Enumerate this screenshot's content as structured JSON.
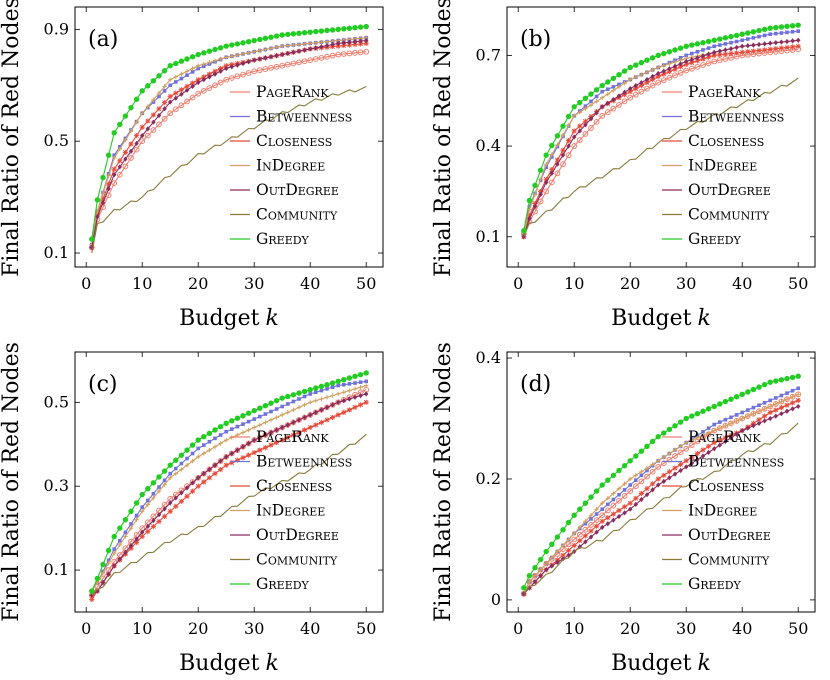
{
  "x_label_text": "Budget",
  "x_label_var": "k",
  "y_label": "Final Ratio of Red Nodes",
  "legend": [
    {
      "key": "pagerank",
      "label": "PageRank",
      "color": "#f08070",
      "marker": "hcircle"
    },
    {
      "key": "betweenness",
      "label": "Betweenness",
      "color": "#6f73d9",
      "marker": "square"
    },
    {
      "key": "closeness",
      "label": "Closeness",
      "color": "#e84a3a",
      "marker": "star"
    },
    {
      "key": "indegree",
      "label": "InDegree",
      "color": "#d2a060",
      "marker": "plus"
    },
    {
      "key": "outdegree",
      "label": "OutDegree",
      "color": "#8a2d5d",
      "marker": "diamond"
    },
    {
      "key": "community",
      "label": "Community",
      "color": "#8b7a3a",
      "marker": "none"
    },
    {
      "key": "greedy",
      "label": "Greedy",
      "color": "#22cc22",
      "marker": "dot"
    }
  ],
  "chart_data": [
    {
      "type": "line",
      "panel_label": "(a)",
      "xlim": [
        -2,
        53
      ],
      "ylim": [
        0.05,
        0.98
      ],
      "xticks": [
        0,
        10,
        20,
        30,
        40,
        50
      ],
      "yticks": [
        0.1,
        0.5,
        0.9
      ],
      "x": [
        1,
        2,
        5,
        10,
        15,
        20,
        25,
        30,
        35,
        40,
        45,
        50
      ],
      "series": [
        {
          "name": "PageRank",
          "values": [
            0.12,
            0.22,
            0.35,
            0.5,
            0.6,
            0.67,
            0.72,
            0.75,
            0.77,
            0.79,
            0.81,
            0.82
          ]
        },
        {
          "name": "Betweenness",
          "values": [
            0.13,
            0.25,
            0.45,
            0.6,
            0.7,
            0.76,
            0.8,
            0.82,
            0.84,
            0.85,
            0.86,
            0.87
          ]
        },
        {
          "name": "Closeness",
          "values": [
            0.12,
            0.24,
            0.4,
            0.55,
            0.66,
            0.72,
            0.77,
            0.79,
            0.81,
            0.83,
            0.84,
            0.85
          ]
        },
        {
          "name": "InDegree",
          "values": [
            0.13,
            0.25,
            0.44,
            0.6,
            0.72,
            0.77,
            0.8,
            0.82,
            0.84,
            0.85,
            0.86,
            0.87
          ]
        },
        {
          "name": "OutDegree",
          "values": [
            0.12,
            0.23,
            0.38,
            0.52,
            0.64,
            0.71,
            0.76,
            0.79,
            0.81,
            0.83,
            0.85,
            0.86
          ]
        },
        {
          "name": "Community",
          "values": [
            0.1,
            0.2,
            0.25,
            0.3,
            0.38,
            0.45,
            0.5,
            0.55,
            0.6,
            0.64,
            0.67,
            0.69
          ]
        },
        {
          "name": "Greedy",
          "values": [
            0.15,
            0.29,
            0.53,
            0.68,
            0.77,
            0.81,
            0.84,
            0.86,
            0.88,
            0.89,
            0.9,
            0.91
          ]
        }
      ]
    },
    {
      "type": "line",
      "panel_label": "(b)",
      "xlim": [
        -2,
        53
      ],
      "ylim": [
        0.0,
        0.86
      ],
      "xticks": [
        0,
        10,
        20,
        30,
        40,
        50
      ],
      "yticks": [
        0.1,
        0.4,
        0.7
      ],
      "x": [
        1,
        2,
        5,
        10,
        15,
        20,
        25,
        30,
        35,
        40,
        45,
        50
      ],
      "series": [
        {
          "name": "PageRank",
          "values": [
            0.11,
            0.15,
            0.25,
            0.4,
            0.5,
            0.56,
            0.61,
            0.65,
            0.68,
            0.7,
            0.71,
            0.72
          ]
        },
        {
          "name": "Betweenness",
          "values": [
            0.11,
            0.2,
            0.33,
            0.5,
            0.58,
            0.62,
            0.66,
            0.7,
            0.73,
            0.75,
            0.77,
            0.78
          ]
        },
        {
          "name": "Closeness",
          "values": [
            0.1,
            0.17,
            0.29,
            0.45,
            0.53,
            0.58,
            0.63,
            0.67,
            0.7,
            0.71,
            0.72,
            0.73
          ]
        },
        {
          "name": "InDegree",
          "values": [
            0.11,
            0.19,
            0.34,
            0.5,
            0.56,
            0.62,
            0.66,
            0.69,
            0.71,
            0.73,
            0.74,
            0.75
          ]
        },
        {
          "name": "OutDegree",
          "values": [
            0.1,
            0.16,
            0.28,
            0.43,
            0.53,
            0.59,
            0.64,
            0.68,
            0.71,
            0.73,
            0.74,
            0.75
          ]
        },
        {
          "name": "Community",
          "values": [
            0.1,
            0.14,
            0.18,
            0.25,
            0.3,
            0.35,
            0.41,
            0.46,
            0.5,
            0.54,
            0.58,
            0.62
          ]
        },
        {
          "name": "Greedy",
          "values": [
            0.12,
            0.22,
            0.37,
            0.53,
            0.6,
            0.66,
            0.7,
            0.73,
            0.75,
            0.77,
            0.79,
            0.8
          ]
        }
      ]
    },
    {
      "type": "line",
      "panel_label": "(c)",
      "xlim": [
        -2,
        53
      ],
      "ylim": [
        0.0,
        0.62
      ],
      "xticks": [
        0,
        10,
        20,
        30,
        40,
        50
      ],
      "yticks": [
        0.1,
        0.3,
        0.5
      ],
      "x": [
        1,
        2,
        5,
        10,
        15,
        20,
        25,
        30,
        35,
        40,
        45,
        50
      ],
      "series": [
        {
          "name": "PageRank",
          "values": [
            0.04,
            0.06,
            0.12,
            0.2,
            0.27,
            0.32,
            0.37,
            0.41,
            0.44,
            0.47,
            0.5,
            0.53
          ]
        },
        {
          "name": "Betweenness",
          "values": [
            0.05,
            0.07,
            0.15,
            0.25,
            0.33,
            0.39,
            0.43,
            0.46,
            0.49,
            0.52,
            0.54,
            0.55
          ]
        },
        {
          "name": "Closeness",
          "values": [
            0.03,
            0.05,
            0.11,
            0.18,
            0.24,
            0.3,
            0.35,
            0.38,
            0.41,
            0.44,
            0.47,
            0.5
          ]
        },
        {
          "name": "InDegree",
          "values": [
            0.05,
            0.07,
            0.14,
            0.24,
            0.32,
            0.37,
            0.41,
            0.44,
            0.47,
            0.5,
            0.52,
            0.54
          ]
        },
        {
          "name": "OutDegree",
          "values": [
            0.04,
            0.05,
            0.11,
            0.19,
            0.26,
            0.32,
            0.37,
            0.41,
            0.44,
            0.47,
            0.5,
            0.52
          ]
        },
        {
          "name": "Community",
          "values": [
            0.04,
            0.05,
            0.09,
            0.13,
            0.17,
            0.2,
            0.24,
            0.28,
            0.31,
            0.34,
            0.38,
            0.42
          ]
        },
        {
          "name": "Greedy",
          "values": [
            0.05,
            0.08,
            0.18,
            0.28,
            0.35,
            0.41,
            0.45,
            0.48,
            0.51,
            0.53,
            0.55,
            0.57
          ]
        }
      ]
    },
    {
      "type": "line",
      "panel_label": "(d)",
      "xlim": [
        -2,
        53
      ],
      "ylim": [
        -0.02,
        0.41
      ],
      "xticks": [
        0,
        10,
        20,
        30,
        40,
        50
      ],
      "yticks": [
        0,
        0.2,
        0.4
      ],
      "x": [
        1,
        2,
        5,
        10,
        15,
        20,
        25,
        30,
        35,
        40,
        45,
        50
      ],
      "series": [
        {
          "name": "PageRank",
          "values": [
            0.01,
            0.03,
            0.06,
            0.1,
            0.14,
            0.18,
            0.22,
            0.25,
            0.28,
            0.3,
            0.32,
            0.34
          ]
        },
        {
          "name": "Betweenness",
          "values": [
            0.01,
            0.03,
            0.06,
            0.11,
            0.15,
            0.19,
            0.23,
            0.26,
            0.29,
            0.31,
            0.33,
            0.35
          ]
        },
        {
          "name": "Closeness",
          "values": [
            0.01,
            0.02,
            0.05,
            0.09,
            0.13,
            0.16,
            0.2,
            0.23,
            0.26,
            0.28,
            0.31,
            0.33
          ]
        },
        {
          "name": "InDegree",
          "values": [
            0.01,
            0.03,
            0.06,
            0.11,
            0.16,
            0.2,
            0.23,
            0.26,
            0.28,
            0.3,
            0.32,
            0.34
          ]
        },
        {
          "name": "OutDegree",
          "values": [
            0.01,
            0.02,
            0.05,
            0.08,
            0.12,
            0.15,
            0.19,
            0.22,
            0.25,
            0.28,
            0.3,
            0.32
          ]
        },
        {
          "name": "Community",
          "values": [
            0.01,
            0.02,
            0.04,
            0.08,
            0.1,
            0.13,
            0.16,
            0.19,
            0.21,
            0.24,
            0.26,
            0.29
          ]
        },
        {
          "name": "Greedy",
          "values": [
            0.02,
            0.04,
            0.08,
            0.14,
            0.19,
            0.23,
            0.27,
            0.3,
            0.32,
            0.34,
            0.36,
            0.37
          ]
        }
      ]
    }
  ]
}
